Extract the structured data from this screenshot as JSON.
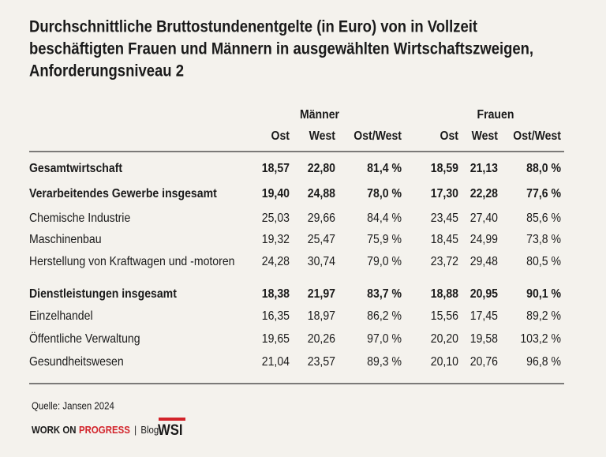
{
  "title": [
    "Durchschnittliche Bruttostundenentgelte (in Euro) von in Vollzeit",
    "beschäftigten Frauen und Männern in ausgewählten Wirtschaftszweigen,",
    "Anforderungsniveau 2"
  ],
  "table": {
    "groups": [
      "Männer",
      "Frauen"
    ],
    "columns": [
      "Ost",
      "West",
      "Ost/West",
      "Ost",
      "West",
      "Ost/West"
    ],
    "rows": [
      {
        "label": "Gesamtwirtschaft",
        "bold": true,
        "values": [
          "18,57",
          "22,80",
          "81,4 %",
          "18,59",
          "21,13",
          "88,0 %"
        ]
      },
      {
        "label": "Verarbeitendes Gewerbe insgesamt",
        "bold": true,
        "values": [
          "19,40",
          "24,88",
          "78,0 %",
          "17,30",
          "22,28",
          "77,6 %"
        ]
      },
      {
        "label": "Chemische Industrie",
        "bold": false,
        "values": [
          "25,03",
          "29,66",
          "84,4 %",
          "23,45",
          "27,40",
          "85,6 %"
        ]
      },
      {
        "label": "Maschinenbau",
        "bold": false,
        "values": [
          "19,32",
          "25,47",
          "75,9 %",
          "18,45",
          "24,99",
          "73,8 %"
        ]
      },
      {
        "label": "Herstellung von Kraftwagen und -motoren",
        "bold": false,
        "values": [
          "24,28",
          "30,74",
          "79,0 %",
          "23,72",
          "29,48",
          "80,5 %"
        ]
      },
      {
        "label": "Dienstleistungen insgesamt",
        "bold": true,
        "values": [
          "18,38",
          "21,97",
          "83,7 %",
          "18,88",
          "20,95",
          "90,1 %"
        ]
      },
      {
        "label": "Einzelhandel",
        "bold": false,
        "values": [
          "16,35",
          "18,97",
          "86,2 %",
          "15,56",
          "17,45",
          "89,2 %"
        ]
      },
      {
        "label": "Öffentliche Verwaltung",
        "bold": false,
        "values": [
          "19,65",
          "20,26",
          "97,0 %",
          "20,20",
          "19,58",
          "103,2 %"
        ]
      },
      {
        "label": "Gesundheitswesen",
        "bold": false,
        "values": [
          "21,04",
          "23,57",
          "89,3 %",
          "20,10",
          "20,76",
          "96,8 %"
        ]
      }
    ]
  },
  "source": "Quelle: Jansen 2024",
  "footer": {
    "brand_a": "WORK ON",
    "brand_b": "PROGRESS",
    "separator": "|",
    "blog": "Blog",
    "logo": "WSI"
  }
}
